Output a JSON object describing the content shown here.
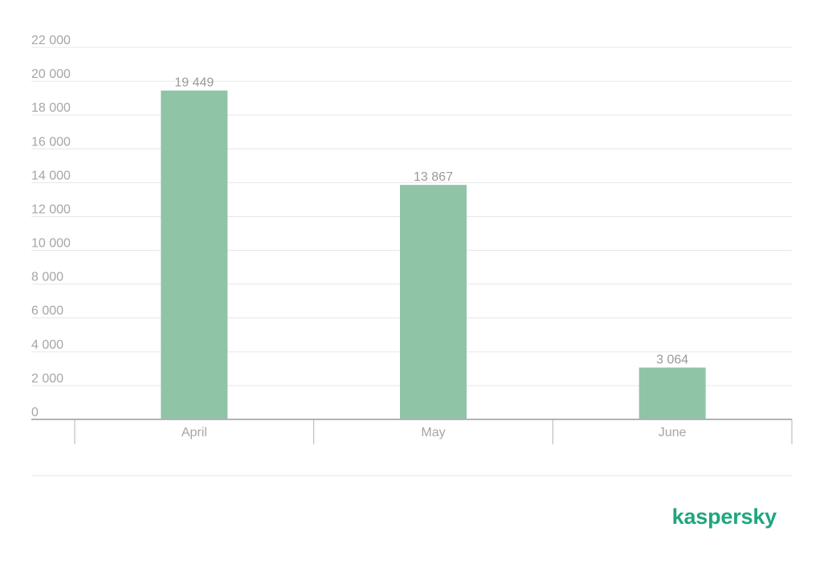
{
  "chart_data": {
    "type": "bar",
    "categories": [
      "April",
      "May",
      "June"
    ],
    "values": [
      19449,
      13867,
      3064
    ],
    "value_labels": [
      "19 449",
      "13 867",
      "3 064"
    ],
    "title": "",
    "xlabel": "",
    "ylabel": "",
    "ylim": [
      0,
      22000
    ],
    "yticks": [
      0,
      2000,
      4000,
      6000,
      8000,
      10000,
      12000,
      14000,
      16000,
      18000,
      20000,
      22000
    ],
    "ytick_labels": [
      "0",
      "2 000",
      "4 000",
      "6 000",
      "8 000",
      "10 000",
      "12 000",
      "14 000",
      "16 000",
      "18 000",
      "20 000",
      "22 000"
    ],
    "grid": true,
    "legend": "none"
  },
  "colors": {
    "bar": "#8fc4a7",
    "grid": "#e6e6e6",
    "axis": "#b3b3b3",
    "tick_text": "#a6a6a6",
    "label_text": "#9a9a9a",
    "brand": "#1fa67f"
  },
  "brand": {
    "logo_text": "kaspersky"
  }
}
